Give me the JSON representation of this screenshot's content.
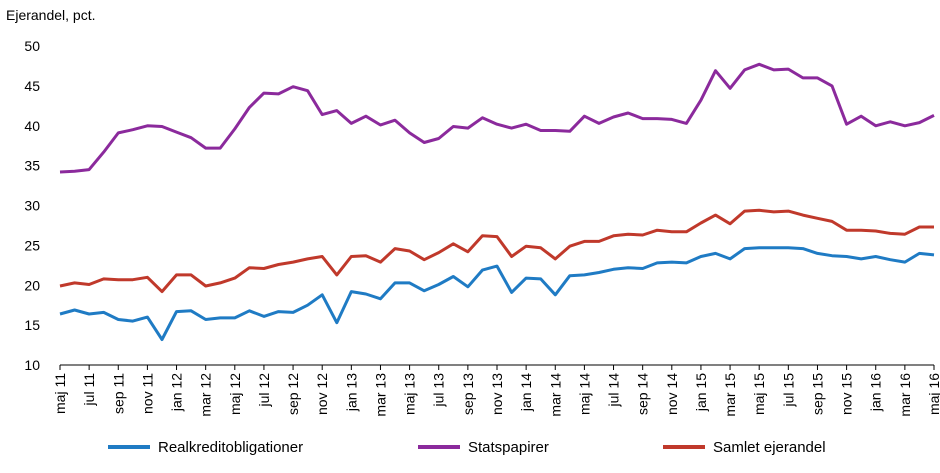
{
  "chart_data": {
    "type": "line",
    "ylabel": "Ejerandel, pct.",
    "ylim": [
      10,
      50
    ],
    "yticks": [
      10,
      15,
      20,
      25,
      30,
      35,
      40,
      45,
      50
    ],
    "grid": false,
    "legend_position": "bottom",
    "x_labels": [
      "maj 11",
      "jul 11",
      "sep 11",
      "nov 11",
      "jan 12",
      "mar 12",
      "maj 12",
      "jul 12",
      "sep 12",
      "nov 12",
      "jan 13",
      "mar 13",
      "maj 13",
      "jul 13",
      "sep 13",
      "nov 13",
      "jan 14",
      "mar 14",
      "maj 14",
      "jul 14",
      "sep 14",
      "nov 14",
      "jan 15",
      "mar 15",
      "maj 15",
      "jul 15",
      "sep 15",
      "nov 15",
      "jan 16",
      "mar 16",
      "maj 16"
    ],
    "series": [
      {
        "name": "Realkreditobligationer",
        "color": "#1f7bc4",
        "values": [
          16.4,
          16.9,
          16.4,
          16.6,
          15.7,
          15.5,
          16.0,
          13.2,
          16.7,
          16.8,
          15.7,
          15.9,
          15.9,
          16.8,
          16.1,
          16.7,
          16.6,
          17.5,
          18.8,
          15.3,
          19.2,
          18.9,
          18.3,
          20.3,
          20.3,
          19.3,
          20.1,
          21.1,
          19.8,
          21.9,
          22.4,
          19.1,
          20.9,
          20.8,
          18.8,
          21.2,
          21.3,
          21.6,
          22.0,
          22.2,
          22.1,
          22.8,
          22.9,
          22.8,
          23.6,
          24.0,
          23.3,
          24.6,
          24.7,
          24.7,
          24.7,
          24.6,
          24.0,
          23.7,
          23.6,
          23.3,
          23.6,
          23.2,
          22.9,
          24.0,
          23.8
        ]
      },
      {
        "name": "Statspapirer",
        "color": "#8b2a9c",
        "values": [
          34.2,
          34.3,
          34.5,
          36.7,
          39.1,
          39.5,
          40.0,
          39.9,
          39.2,
          38.5,
          37.2,
          37.2,
          39.6,
          42.3,
          44.1,
          44.0,
          44.9,
          44.4,
          41.4,
          41.9,
          40.3,
          41.2,
          40.1,
          40.7,
          39.1,
          37.9,
          38.4,
          39.9,
          39.7,
          41.0,
          40.2,
          39.7,
          40.2,
          39.4,
          39.4,
          39.3,
          41.2,
          40.3,
          41.1,
          41.6,
          40.9,
          40.9,
          40.8,
          40.3,
          43.2,
          46.9,
          44.7,
          47.0,
          47.7,
          47.0,
          47.1,
          46.0,
          46.0,
          45.0,
          40.2,
          41.2,
          40.0,
          40.5,
          40.0,
          40.4,
          41.3
        ]
      },
      {
        "name": "Samlet ejerandel",
        "color": "#c0392b",
        "values": [
          19.9,
          20.3,
          20.1,
          20.8,
          20.7,
          20.7,
          21.0,
          19.2,
          21.3,
          21.3,
          19.9,
          20.3,
          20.9,
          22.2,
          22.1,
          22.6,
          22.9,
          23.3,
          23.6,
          21.3,
          23.6,
          23.7,
          22.9,
          24.6,
          24.3,
          23.2,
          24.1,
          25.2,
          24.2,
          26.2,
          26.1,
          23.6,
          24.9,
          24.7,
          23.3,
          24.9,
          25.5,
          25.5,
          26.2,
          26.4,
          26.3,
          26.9,
          26.7,
          26.7,
          27.8,
          28.8,
          27.7,
          29.3,
          29.4,
          29.2,
          29.3,
          28.8,
          28.4,
          28.0,
          26.9,
          26.9,
          26.8,
          26.5,
          26.4,
          27.3,
          27.3
        ]
      }
    ]
  }
}
